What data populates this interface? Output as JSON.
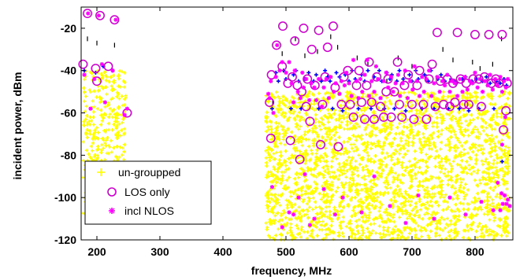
{
  "chart_data": {
    "type": "scatter",
    "title": "",
    "xlabel": "frequency, MHz",
    "ylabel": "incident power, dBm",
    "xlim": [
      175,
      860
    ],
    "ylim": [
      -120,
      -10
    ],
    "xticks": [
      200,
      300,
      400,
      500,
      600,
      700,
      800
    ],
    "yticks": [
      -120,
      -100,
      -80,
      -60,
      -40,
      -20
    ],
    "grid": false,
    "legend_position": "bottom-left",
    "colors": {
      "ungrouped": "#ffff00",
      "los": "#cc00cc",
      "nlos": "#ff00ff",
      "blue": "#0000ff",
      "axis": "#000000"
    },
    "series": [
      {
        "name": "un-groupped",
        "marker": "plus",
        "bands": [
          {
            "x": [
              178,
              246
            ],
            "y": [
              -112,
              -40
            ],
            "density": 380
          },
          {
            "x": [
              468,
              855
            ],
            "y": [
              -120,
              -50
            ],
            "density": 2600
          }
        ]
      },
      {
        "name": "LOS only",
        "marker": "circle",
        "points": [
          [
            178,
            -37
          ],
          [
            185,
            -13
          ],
          [
            198,
            -39
          ],
          [
            200,
            -45
          ],
          [
            205,
            -14
          ],
          [
            218,
            -38
          ],
          [
            228,
            -16
          ],
          [
            248,
            -60
          ],
          [
            474,
            -55
          ],
          [
            476,
            -72
          ],
          [
            477,
            -42
          ],
          [
            485,
            -28
          ],
          [
            494,
            -38
          ],
          [
            495,
            -19
          ],
          [
            503,
            -46
          ],
          [
            507,
            -73
          ],
          [
            510,
            -43
          ],
          [
            514,
            -26
          ],
          [
            518,
            -47
          ],
          [
            522,
            -82
          ],
          [
            525,
            -50
          ],
          [
            528,
            -20
          ],
          [
            532,
            -57
          ],
          [
            534,
            -44
          ],
          [
            538,
            -64
          ],
          [
            541,
            -30
          ],
          [
            546,
            -47
          ],
          [
            552,
            -21
          ],
          [
            555,
            -75
          ],
          [
            558,
            -56
          ],
          [
            562,
            -43
          ],
          [
            566,
            -29
          ],
          [
            575,
            -19
          ],
          [
            578,
            -48
          ],
          [
            583,
            -76
          ],
          [
            588,
            -56
          ],
          [
            592,
            -43
          ],
          [
            598,
            -40
          ],
          [
            602,
            -56
          ],
          [
            607,
            -62
          ],
          [
            612,
            -47
          ],
          [
            616,
            -40
          ],
          [
            620,
            -55
          ],
          [
            625,
            -63
          ],
          [
            628,
            -47
          ],
          [
            632,
            -36
          ],
          [
            636,
            -55
          ],
          [
            640,
            -63
          ],
          [
            644,
            -43
          ],
          [
            650,
            -57
          ],
          [
            655,
            -62
          ],
          [
            659,
            -50
          ],
          [
            662,
            -44
          ],
          [
            667,
            -62
          ],
          [
            672,
            -50
          ],
          [
            677,
            -36
          ],
          [
            680,
            -56
          ],
          [
            684,
            -62
          ],
          [
            688,
            -47
          ],
          [
            694,
            -42
          ],
          [
            700,
            -56
          ],
          [
            703,
            -63
          ],
          [
            708,
            -47
          ],
          [
            712,
            -40
          ],
          [
            718,
            -56
          ],
          [
            723,
            -63
          ],
          [
            727,
            -44
          ],
          [
            732,
            -37
          ],
          [
            737,
            -57
          ],
          [
            740,
            -22
          ],
          [
            745,
            -45
          ],
          [
            750,
            -56
          ],
          [
            756,
            -44
          ],
          [
            760,
            -57
          ],
          [
            765,
            -46
          ],
          [
            768,
            -55
          ],
          [
            772,
            -22
          ],
          [
            777,
            -44
          ],
          [
            782,
            -56
          ],
          [
            786,
            -46
          ],
          [
            790,
            -56
          ],
          [
            797,
            -44
          ],
          [
            800,
            -23
          ],
          [
            806,
            -44
          ],
          [
            810,
            -57
          ],
          [
            815,
            -43
          ],
          [
            822,
            -23
          ],
          [
            826,
            -46
          ],
          [
            833,
            -44
          ],
          [
            838,
            -46
          ],
          [
            843,
            -23
          ],
          [
            845,
            -68
          ],
          [
            849,
            -59
          ],
          [
            851,
            -46
          ]
        ]
      },
      {
        "name": "incl NLOS",
        "marker": "asterisk",
        "points": [
          [
            180,
            -42
          ],
          [
            186,
            -13
          ],
          [
            190,
            -58
          ],
          [
            196,
            -44
          ],
          [
            203,
            -14
          ],
          [
            208,
            -37
          ],
          [
            213,
            -55
          ],
          [
            225,
            -40
          ],
          [
            230,
            -16
          ],
          [
            244,
            -61
          ],
          [
            248,
            -58
          ],
          [
            472,
            -51
          ],
          [
            474,
            -53
          ],
          [
            476,
            -45
          ],
          [
            480,
            -60
          ],
          [
            484,
            -43
          ],
          [
            486,
            -28
          ],
          [
            490,
            -40
          ],
          [
            494,
            -36
          ],
          [
            500,
            -41
          ],
          [
            505,
            -36
          ],
          [
            509,
            -46
          ],
          [
            512,
            -55
          ],
          [
            514,
            -40
          ],
          [
            519,
            -50
          ],
          [
            523,
            -53
          ],
          [
            526,
            -41
          ],
          [
            528,
            -48
          ],
          [
            532,
            -44
          ],
          [
            537,
            -54
          ],
          [
            540,
            -46
          ],
          [
            545,
            -48
          ],
          [
            548,
            -54
          ],
          [
            552,
            -44
          ],
          [
            557,
            -57
          ],
          [
            560,
            -48
          ],
          [
            564,
            -44
          ],
          [
            568,
            -53
          ],
          [
            571,
            -43
          ],
          [
            576,
            -50
          ],
          [
            579,
            -46
          ],
          [
            585,
            -51
          ],
          [
            588,
            -45
          ],
          [
            593,
            -47
          ],
          [
            596,
            -41
          ],
          [
            600,
            -46
          ],
          [
            604,
            -52
          ],
          [
            607,
            -35
          ],
          [
            612,
            -45
          ],
          [
            615,
            -53
          ],
          [
            618,
            -44
          ],
          [
            621,
            -50
          ],
          [
            625,
            -42
          ],
          [
            629,
            -35
          ],
          [
            632,
            -52
          ],
          [
            636,
            -45
          ],
          [
            640,
            -50
          ],
          [
            643,
            -38
          ],
          [
            646,
            -44
          ],
          [
            650,
            -53
          ],
          [
            655,
            -45
          ],
          [
            659,
            -41
          ],
          [
            662,
            -48
          ],
          [
            667,
            -43
          ],
          [
            670,
            -50
          ],
          [
            674,
            -46
          ],
          [
            678,
            -42
          ],
          [
            681,
            -52
          ],
          [
            685,
            -46
          ],
          [
            689,
            -40
          ],
          [
            693,
            -53
          ],
          [
            697,
            -45
          ],
          [
            701,
            -49
          ],
          [
            704,
            -38
          ],
          [
            708,
            -45
          ],
          [
            712,
            -52
          ],
          [
            716,
            -43
          ],
          [
            719,
            -50
          ],
          [
            723,
            -44
          ],
          [
            727,
            -40
          ],
          [
            731,
            -52
          ],
          [
            735,
            -46
          ],
          [
            740,
            -43
          ],
          [
            744,
            -50
          ],
          [
            748,
            -45
          ],
          [
            752,
            -47
          ],
          [
            756,
            -42
          ],
          [
            760,
            -50
          ],
          [
            764,
            -45
          ],
          [
            768,
            -46
          ],
          [
            772,
            -52
          ],
          [
            776,
            -44
          ],
          [
            780,
            -50
          ],
          [
            784,
            -43
          ],
          [
            788,
            -49
          ],
          [
            792,
            -45
          ],
          [
            796,
            -46
          ],
          [
            800,
            -41
          ],
          [
            804,
            -48
          ],
          [
            808,
            -44
          ],
          [
            812,
            -50
          ],
          [
            816,
            -45
          ],
          [
            820,
            -47
          ],
          [
            824,
            -42
          ],
          [
            828,
            -49
          ],
          [
            832,
            -44
          ],
          [
            836,
            -47
          ],
          [
            840,
            -43
          ],
          [
            843,
            -50
          ],
          [
            846,
            -45
          ],
          [
            849,
            -48
          ],
          [
            852,
            -44
          ],
          [
            478,
            -95
          ],
          [
            494,
            -114
          ],
          [
            505,
            -107
          ],
          [
            512,
            -108
          ],
          [
            520,
            -100
          ],
          [
            530,
            -89
          ],
          [
            538,
            -113
          ],
          [
            545,
            -110
          ],
          [
            560,
            -96
          ],
          [
            578,
            -108
          ],
          [
            590,
            -100
          ],
          [
            620,
            -107
          ],
          [
            640,
            -90
          ],
          [
            665,
            -104
          ],
          [
            690,
            -112
          ],
          [
            710,
            -99
          ],
          [
            735,
            -110
          ],
          [
            760,
            -100
          ],
          [
            785,
            -108
          ],
          [
            810,
            -102
          ],
          [
            829,
            -106
          ],
          [
            836,
            -93
          ],
          [
            840,
            -106
          ],
          [
            842,
            -98
          ],
          [
            844,
            -103
          ],
          [
            847,
            -99
          ],
          [
            850,
            -103
          ],
          [
            852,
            -101
          ],
          [
            855,
            -104
          ],
          [
            843,
            -75
          ],
          [
            848,
            -62
          ]
        ]
      }
    ],
    "blue_points": [
      [
        180,
        -40
      ],
      [
        198,
        -41
      ],
      [
        210,
        -38
      ],
      [
        225,
        -40
      ],
      [
        478,
        -58
      ],
      [
        484,
        -41
      ],
      [
        488,
        -45
      ],
      [
        496,
        -40
      ],
      [
        500,
        -44
      ],
      [
        508,
        -58
      ],
      [
        512,
        -42
      ],
      [
        516,
        -40
      ],
      [
        520,
        -45
      ],
      [
        524,
        -58
      ],
      [
        530,
        -44
      ],
      [
        536,
        -41
      ],
      [
        544,
        -45
      ],
      [
        548,
        -42
      ],
      [
        552,
        -58
      ],
      [
        556,
        -45
      ],
      [
        562,
        -40
      ],
      [
        566,
        -43
      ],
      [
        570,
        -45
      ],
      [
        574,
        -58
      ],
      [
        580,
        -41
      ],
      [
        585,
        -43
      ],
      [
        590,
        -59
      ],
      [
        594,
        -42
      ],
      [
        600,
        -45
      ],
      [
        605,
        -40
      ],
      [
        610,
        -44
      ],
      [
        615,
        -58
      ],
      [
        620,
        -42
      ],
      [
        625,
        -45
      ],
      [
        630,
        -40
      ],
      [
        635,
        -58
      ],
      [
        640,
        -43
      ],
      [
        648,
        -40
      ],
      [
        652,
        -45
      ],
      [
        656,
        -58
      ],
      [
        660,
        -41
      ],
      [
        665,
        -44
      ],
      [
        668,
        -42
      ],
      [
        672,
        -58
      ],
      [
        676,
        -45
      ],
      [
        680,
        -40
      ],
      [
        686,
        -44
      ],
      [
        690,
        -59
      ],
      [
        696,
        -42
      ],
      [
        700,
        -45
      ],
      [
        706,
        -40
      ],
      [
        710,
        -44
      ],
      [
        716,
        -58
      ],
      [
        720,
        -42
      ],
      [
        726,
        -45
      ],
      [
        730,
        -40
      ],
      [
        735,
        -58
      ],
      [
        741,
        -44
      ],
      [
        746,
        -42
      ],
      [
        752,
        -45
      ],
      [
        758,
        -58
      ],
      [
        762,
        -44
      ],
      [
        766,
        -45
      ],
      [
        770,
        -46
      ],
      [
        775,
        -58
      ],
      [
        780,
        -44
      ],
      [
        785,
        -43
      ],
      [
        790,
        -59
      ],
      [
        795,
        -45
      ],
      [
        802,
        -44
      ],
      [
        806,
        -58
      ],
      [
        812,
        -45
      ],
      [
        818,
        -43
      ],
      [
        824,
        -46
      ],
      [
        830,
        -58
      ],
      [
        834,
        -45
      ],
      [
        840,
        -46
      ],
      [
        846,
        -44
      ],
      [
        850,
        -47
      ],
      [
        843,
        -83
      ]
    ],
    "dark_points": [
      [
        185,
        -25
      ],
      [
        200,
        -27
      ],
      [
        228,
        -28
      ],
      [
        479,
        -55
      ],
      [
        494,
        -32
      ],
      [
        515,
        -25
      ],
      [
        530,
        -33
      ],
      [
        550,
        -31
      ],
      [
        571,
        -24
      ],
      [
        582,
        -29
      ],
      [
        613,
        -34
      ],
      [
        630,
        -37
      ],
      [
        660,
        -45
      ],
      [
        678,
        -34
      ],
      [
        700,
        -38
      ],
      [
        722,
        -44
      ],
      [
        749,
        -30
      ],
      [
        765,
        -35
      ],
      [
        796,
        -36
      ],
      [
        808,
        -39
      ],
      [
        828,
        -37
      ],
      [
        842,
        -25
      ]
    ]
  },
  "legend": {
    "items": [
      {
        "label": "un-groupped"
      },
      {
        "label": "LOS only"
      },
      {
        "label": "incl NLOS"
      }
    ]
  }
}
